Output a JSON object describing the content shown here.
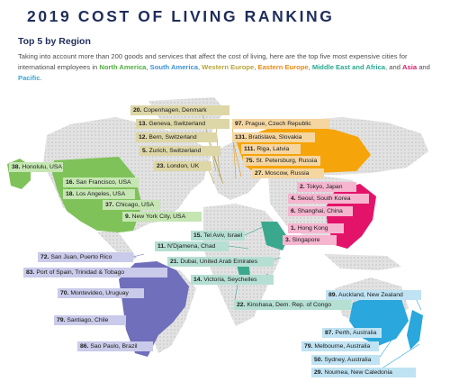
{
  "header": {
    "title": "2019 COST OF LIVING RANKING",
    "subtitle": "Top 5 by Region"
  },
  "intro": {
    "text_1": "Taking into account more than 200 goods and services that affect the cost of living, here are the top five most expensive cities for international employees in ",
    "north_america": "North America",
    "sep_1": ", ",
    "south_america": "South America",
    "sep_2": ", ",
    "western_europe": "Western Europe",
    "sep_3": ", ",
    "eastern_europe": "Eastern Europe",
    "sep_4": ", ",
    "middle_east_africa": "Middle East and Africa",
    "sep_5": ", and ",
    "asia": "Asia",
    "sep_6": " and ",
    "pacific": "Pacific",
    "end": "."
  },
  "colors": {
    "north_america": "#4cae3c",
    "south_america": "#6f6fbb",
    "western_europe": "#c7b85a",
    "eastern_europe": "#f5a50a",
    "middle_east_africa": "#3aa88d",
    "asia": "#e4136a",
    "pacific": "#2aa7dc"
  },
  "labels": {
    "western_europe": [
      {
        "rank": "20.",
        "city": "Copenhagen, Denmark"
      },
      {
        "rank": "13.",
        "city": "Geneva, Switzerland"
      },
      {
        "rank": "12.",
        "city": "Bern, Switzerland"
      },
      {
        "rank": "5.",
        "city": "Zurich, Switzerland"
      },
      {
        "rank": "23.",
        "city": "London, UK"
      }
    ],
    "eastern_europe": [
      {
        "rank": "97.",
        "city": "Prague, Czech Republic"
      },
      {
        "rank": "131.",
        "city": "Bratislava, Slovakia"
      },
      {
        "rank": "111.",
        "city": "Riga, Latvia"
      },
      {
        "rank": "75.",
        "city": "St. Petersburg, Russia"
      },
      {
        "rank": "27.",
        "city": "Moscow, Russia"
      }
    ],
    "north_america": [
      {
        "rank": "38.",
        "city": "Honolulu, USA"
      },
      {
        "rank": "16.",
        "city": "San Francisco, USA"
      },
      {
        "rank": "18.",
        "city": "Los Angeles, USA"
      },
      {
        "rank": "37.",
        "city": "Chicago, USA"
      },
      {
        "rank": "9.",
        "city": "New York City, USA"
      }
    ],
    "asia": [
      {
        "rank": "2.",
        "city": "Tokyo, Japan"
      },
      {
        "rank": "4.",
        "city": "Seoul, South Korea"
      },
      {
        "rank": "6.",
        "city": "Shanghai, China"
      },
      {
        "rank": "1.",
        "city": "Hong Kong"
      },
      {
        "rank": "3.",
        "city": "Singapore"
      }
    ],
    "middle_east_africa": [
      {
        "rank": "15.",
        "city": "Tel Aviv, Israel"
      },
      {
        "rank": "11.",
        "city": "N'Djamena, Chad"
      },
      {
        "rank": "21.",
        "city": "Dubai, United Arab Emirates"
      },
      {
        "rank": "14.",
        "city": "Victoria, Seychelles"
      },
      {
        "rank": "22.",
        "city": "Kinshasa, Dem. Rep. of Congo"
      }
    ],
    "south_america": [
      {
        "rank": "72.",
        "city": "San Juan, Puerto Rico"
      },
      {
        "rank": "83.",
        "city": "Port of Spain, Trinidad & Tobago"
      },
      {
        "rank": "70.",
        "city": "Montevideo, Uruguay"
      },
      {
        "rank": "79.",
        "city": "Santiago, Chile"
      },
      {
        "rank": "86.",
        "city": "Sao Paulo, Brazil"
      }
    ],
    "pacific": [
      {
        "rank": "89.",
        "city": "Auckland, New Zealand"
      },
      {
        "rank": "87.",
        "city": "Perth, Australia"
      },
      {
        "rank": "79.",
        "city": "Melbourne, Australia"
      },
      {
        "rank": "50.",
        "city": "Sydney, Australia"
      },
      {
        "rank": "29.",
        "city": "Noumea, New Caledonia"
      }
    ]
  }
}
